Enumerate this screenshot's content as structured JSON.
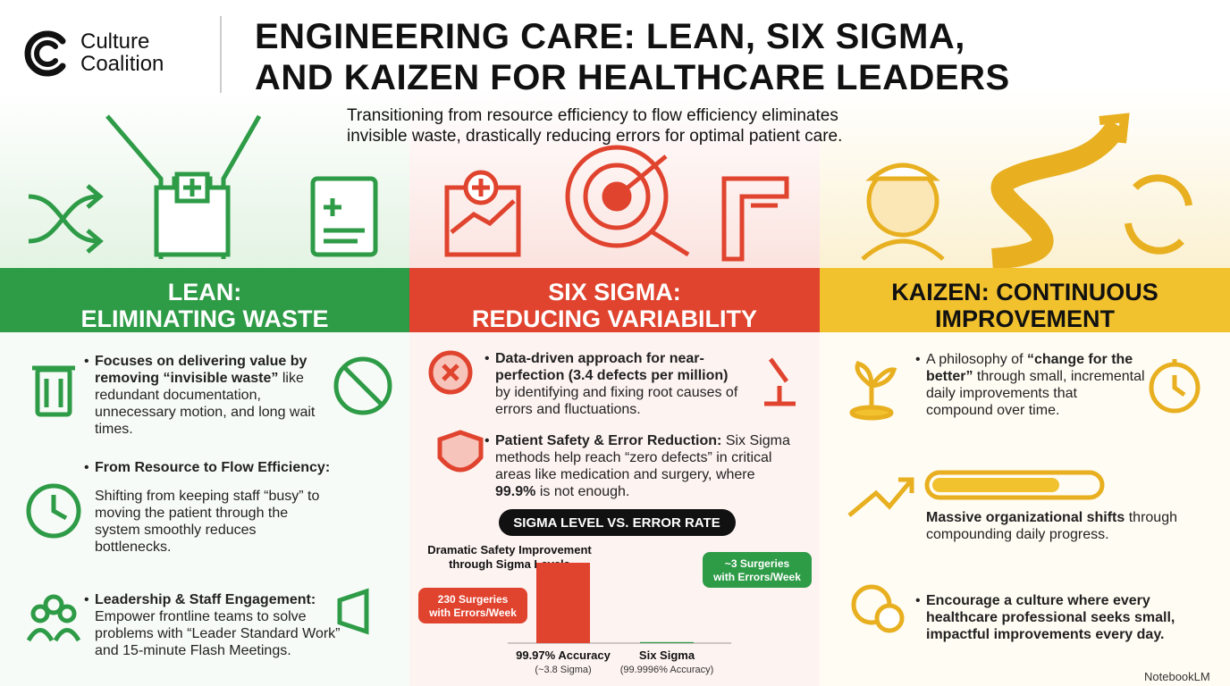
{
  "header": {
    "brand": [
      "Culture",
      "Coalition"
    ],
    "title": [
      "ENGINEERING CARE: LEAN, SIX SIGMA,",
      "AND KAIZEN  FOR HEALTHCARE LEADERS"
    ],
    "subtitle": "Transitioning from resource efficiency to flow efficiency eliminates invisible waste, drastically reducing errors for optimal patient care."
  },
  "columns": [
    {
      "title": [
        "LEAN:",
        "ELIMINATING WASTE"
      ],
      "bullets": [
        [
          {
            "text": "Focuses on delivering value by removing “invisible waste”",
            "bold": true
          },
          {
            "text": " like redundant documentation, unnecessary motion, and long wait times."
          }
        ],
        [
          {
            "text": "From Resource to Flow Efficiency:",
            "bold": true
          }
        ],
        [
          {
            "text": "Shifting from keeping staff “busy” to moving the patient through the system smoothly reduces bottlenecks."
          }
        ],
        [
          {
            "text": "Leadership & Staff Engagement:",
            "bold": true
          },
          {
            "text": " Empower frontline teams to solve problems with “Leader Standard Work” and 15-minute Flash Meetings."
          }
        ]
      ]
    },
    {
      "title": [
        "SIX SIGMA:",
        "REDUCING VARIABILITY"
      ],
      "bullets": [
        [
          {
            "text": "Data-driven approach for near-perfection (3.4 defects per million)",
            "bold": true
          },
          {
            "text": " by identifying and fixing root causes of errors and fluctuations."
          }
        ],
        [
          {
            "text": "Patient Safety & Error Reduction:",
            "bold": true
          },
          {
            "text": " Six Sigma methods help reach “zero defects” in critical areas like medication and surgery, where "
          },
          {
            "text": "99.9%",
            "bold": true
          },
          {
            "text": " is not enough."
          }
        ]
      ]
    },
    {
      "title": [
        "KAIZEN: CONTINUOUS",
        "IMPROVEMENT"
      ],
      "bullets": [
        [
          {
            "text": "A philosophy of "
          },
          {
            "text": "“change for the better”",
            "bold": true
          },
          {
            "text": " through small, incremental daily improvements that compound over time."
          }
        ],
        [
          {
            "text": "Massive organizational shifts",
            "bold": true
          },
          {
            "text": " through compounding daily progress."
          }
        ],
        [
          {
            "text": "Encourage a culture where every healthcare professional seeks small, impactful improvements every day.",
            "bold": true
          }
        ]
      ]
    }
  ],
  "chart_data": {
    "type": "bar",
    "banner": "SIGMA LEVEL VS. ERROR RATE",
    "title": "Dramatic Safety Improvement through Sigma Levels",
    "categories": [
      "99.97% Accuracy",
      "Six Sigma"
    ],
    "subcategories": [
      "(~3.8 Sigma)",
      "(99.9996% Accuracy)"
    ],
    "values": [
      230,
      3
    ],
    "value_labels": [
      "230 Surgeries with Errors/Week",
      "~3 Surgeries with Errors/Week"
    ],
    "colors": [
      "#e0432e",
      "#2e9b47"
    ]
  },
  "footer": "NotebookLM"
}
